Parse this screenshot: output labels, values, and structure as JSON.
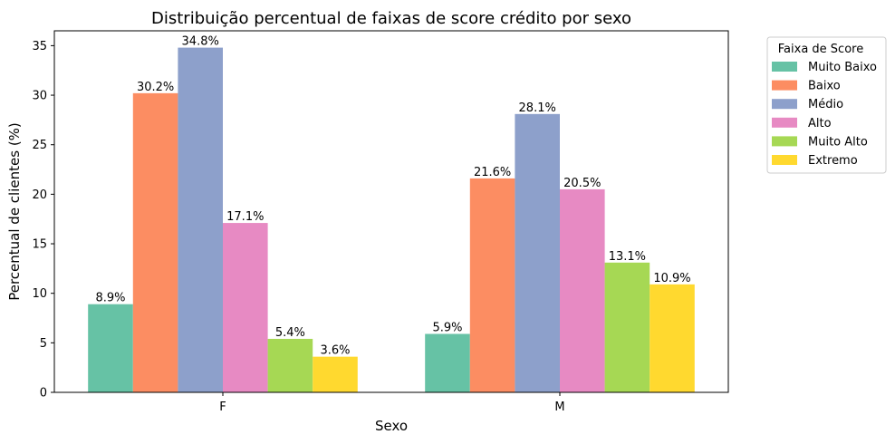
{
  "chart_data": {
    "type": "bar",
    "title": "Distribuição percentual de faixas de score crédito por sexo",
    "xlabel": "Sexo",
    "ylabel": "Percentual de clientes (%)",
    "categories": [
      "F",
      "M"
    ],
    "ylim": [
      0,
      36.5
    ],
    "yticks": [
      0,
      5,
      10,
      15,
      20,
      25,
      30,
      35
    ],
    "grid": false,
    "legend": {
      "title": "Faixa de Score",
      "placement": "outside-top-right"
    },
    "series": [
      {
        "name": "Muito Baixo",
        "color": "#66c2a5",
        "values": [
          8.9,
          5.9
        ],
        "labels": [
          "8.9%",
          "5.9%"
        ]
      },
      {
        "name": "Baixo",
        "color": "#fc8d62",
        "values": [
          30.2,
          21.6
        ],
        "labels": [
          "30.2%",
          "21.6%"
        ]
      },
      {
        "name": "Médio",
        "color": "#8da0cb",
        "values": [
          34.8,
          28.1
        ],
        "labels": [
          "34.8%",
          "28.1%"
        ]
      },
      {
        "name": "Alto",
        "color": "#e78ac3",
        "values": [
          17.1,
          20.5
        ],
        "labels": [
          "17.1%",
          "20.5%"
        ]
      },
      {
        "name": "Muito Alto",
        "color": "#a6d854",
        "values": [
          5.4,
          13.1
        ],
        "labels": [
          "5.4%",
          "13.1%"
        ]
      },
      {
        "name": "Extremo",
        "color": "#ffd92f",
        "values": [
          3.6,
          10.9
        ],
        "labels": [
          "3.6%",
          "10.9%"
        ]
      }
    ]
  }
}
